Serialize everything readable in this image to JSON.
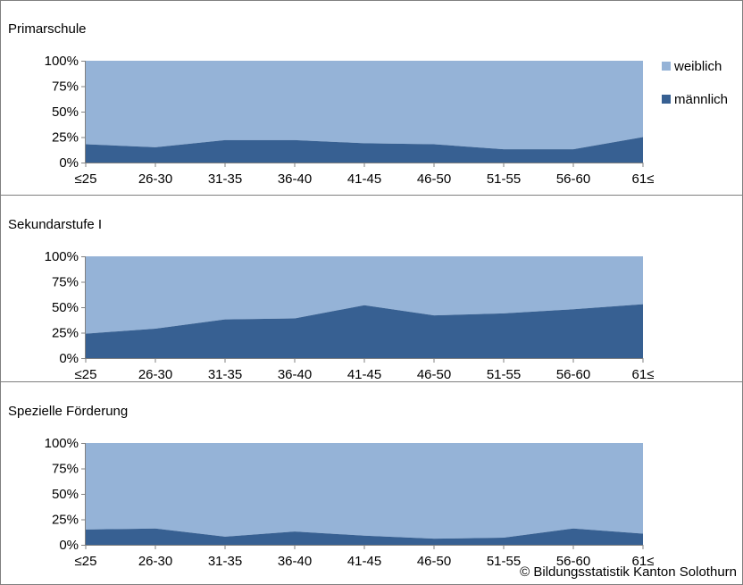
{
  "legend": {
    "weiblich": "weiblich",
    "maennlich": "männlich"
  },
  "colors": {
    "weiblich": "#95b3d7",
    "maennlich": "#376092",
    "border": "#7f7f7f",
    "axis": "#808080"
  },
  "copyright": "© Bildungsstatistik Kanton Solothurn",
  "chart_data": [
    {
      "type": "area",
      "stacked_percent": true,
      "title": "Primarschule",
      "categories": [
        "≤25",
        "26-30",
        "31-35",
        "36-40",
        "41-45",
        "46-50",
        "51-55",
        "56-60",
        "61≤"
      ],
      "yticks": [
        "0%",
        "25%",
        "50%",
        "75%",
        "100%"
      ],
      "ylim": [
        0,
        100
      ],
      "legend_position": "right",
      "series": [
        {
          "name": "männlich",
          "values": [
            18,
            15,
            22,
            22,
            19,
            18,
            13,
            13,
            25
          ]
        },
        {
          "name": "weiblich",
          "values": [
            82,
            85,
            78,
            78,
            81,
            82,
            87,
            87,
            75
          ]
        }
      ]
    },
    {
      "type": "area",
      "stacked_percent": true,
      "title": "Sekundarstufe I",
      "categories": [
        "≤25",
        "26-30",
        "31-35",
        "36-40",
        "41-45",
        "46-50",
        "51-55",
        "56-60",
        "61≤"
      ],
      "yticks": [
        "0%",
        "25%",
        "50%",
        "75%",
        "100%"
      ],
      "ylim": [
        0,
        100
      ],
      "series": [
        {
          "name": "männlich",
          "values": [
            24,
            29,
            38,
            39,
            52,
            42,
            44,
            48,
            53
          ]
        },
        {
          "name": "weiblich",
          "values": [
            76,
            71,
            62,
            61,
            48,
            58,
            56,
            52,
            47
          ]
        }
      ]
    },
    {
      "type": "area",
      "stacked_percent": true,
      "title": "Spezielle Förderung",
      "categories": [
        "≤25",
        "26-30",
        "31-35",
        "36-40",
        "41-45",
        "46-50",
        "51-55",
        "56-60",
        "61≤"
      ],
      "yticks": [
        "0%",
        "25%",
        "50%",
        "75%",
        "100%"
      ],
      "ylim": [
        0,
        100
      ],
      "series": [
        {
          "name": "männlich",
          "values": [
            15,
            16,
            8,
            13,
            9,
            6,
            7,
            16,
            11
          ]
        },
        {
          "name": "weiblich",
          "values": [
            85,
            84,
            92,
            87,
            91,
            94,
            93,
            84,
            89
          ]
        }
      ]
    }
  ]
}
